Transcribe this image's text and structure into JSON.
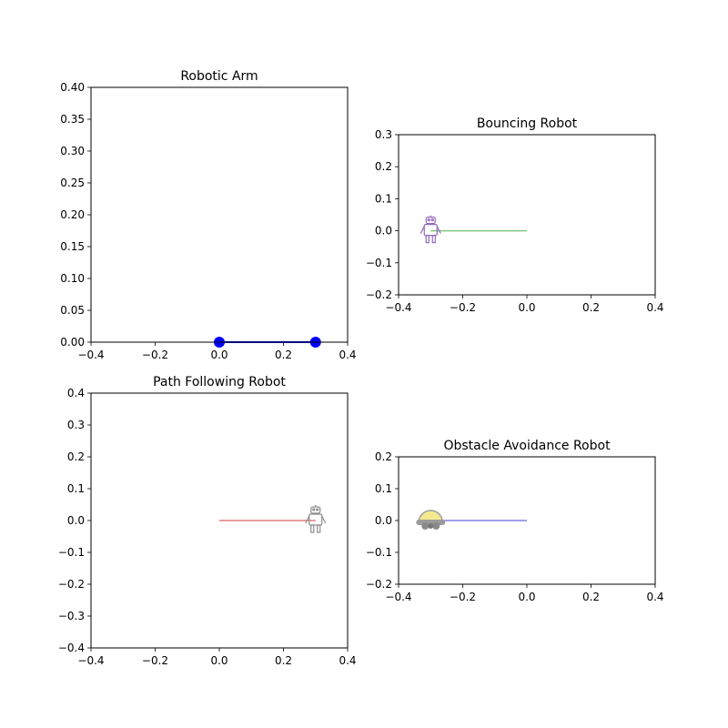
{
  "chart_data": [
    {
      "type": "line",
      "title": "Robotic Arm",
      "xlabel": "",
      "ylabel": "",
      "xlim": [
        -0.4,
        0.4
      ],
      "ylim": [
        0.0,
        0.4
      ],
      "xticks": [
        -0.4,
        -0.2,
        0.0,
        0.2,
        0.4
      ],
      "xtick_labels": [
        "−0.4",
        "−0.2",
        "0.0",
        "0.2",
        "0.4"
      ],
      "yticks": [
        0.0,
        0.05,
        0.1,
        0.15,
        0.2,
        0.25,
        0.3,
        0.35,
        0.4
      ],
      "ytick_labels": [
        "0.00",
        "0.05",
        "0.10",
        "0.15",
        "0.20",
        "0.25",
        "0.30",
        "0.35",
        "0.40"
      ],
      "grid": false,
      "series": [
        {
          "x": [
            0.0,
            0.3
          ],
          "y": [
            0.0,
            0.0
          ],
          "color": "#0000ff",
          "marker": "circle",
          "linewidth": 2
        }
      ]
    },
    {
      "type": "line",
      "title": "Bouncing Robot",
      "xlabel": "",
      "ylabel": "",
      "xlim": [
        -0.4,
        0.4
      ],
      "ylim": [
        -0.2,
        0.3
      ],
      "xticks": [
        -0.4,
        -0.2,
        0.0,
        0.2,
        0.4
      ],
      "xtick_labels": [
        "−0.4",
        "−0.2",
        "0.0",
        "0.2",
        "0.4"
      ],
      "yticks": [
        -0.2,
        -0.1,
        0.0,
        0.1,
        0.2,
        0.3
      ],
      "ytick_labels": [
        "−0.2",
        "−0.1",
        "0.0",
        "0.1",
        "0.2",
        "0.3"
      ],
      "grid": false,
      "series": [
        {
          "x": [
            -0.3,
            0.0
          ],
          "y": [
            0.0,
            0.0
          ],
          "color": "#2ca02c",
          "alpha": 0.6,
          "linewidth": 1.5
        }
      ],
      "icon": {
        "name": "robot-icon",
        "x": -0.3,
        "y": 0.0,
        "color": "#9467bd"
      }
    },
    {
      "type": "line",
      "title": "Path Following Robot",
      "xlabel": "",
      "ylabel": "",
      "xlim": [
        -0.4,
        0.4
      ],
      "ylim": [
        -0.4,
        0.4
      ],
      "xticks": [
        -0.4,
        -0.2,
        0.0,
        0.2,
        0.4
      ],
      "xtick_labels": [
        "−0.4",
        "−0.2",
        "0.0",
        "0.2",
        "0.4"
      ],
      "yticks": [
        -0.4,
        -0.3,
        -0.2,
        -0.1,
        0.0,
        0.1,
        0.2,
        0.3,
        0.4
      ],
      "ytick_labels": [
        "−0.4",
        "−0.3",
        "−0.2",
        "−0.1",
        "0.0",
        "0.1",
        "0.2",
        "0.3",
        "0.4"
      ],
      "grid": false,
      "series": [
        {
          "x": [
            0.0,
            0.3
          ],
          "y": [
            0.0,
            0.0
          ],
          "color": "#d62728",
          "alpha": 0.6,
          "linewidth": 1.5
        }
      ],
      "icon": {
        "name": "robot-icon",
        "x": 0.3,
        "y": 0.0,
        "color": "#8c8c8c"
      }
    },
    {
      "type": "line",
      "title": "Obstacle Avoidance Robot",
      "xlabel": "",
      "ylabel": "",
      "xlim": [
        -0.4,
        0.4
      ],
      "ylim": [
        -0.2,
        0.2
      ],
      "xticks": [
        -0.4,
        -0.2,
        0.0,
        0.2,
        0.4
      ],
      "xtick_labels": [
        "−0.4",
        "−0.2",
        "0.0",
        "0.2",
        "0.4"
      ],
      "yticks": [
        -0.2,
        -0.1,
        0.0,
        0.1,
        0.2
      ],
      "ytick_labels": [
        "−0.2",
        "−0.1",
        "0.0",
        "0.1",
        "0.2"
      ],
      "grid": false,
      "series": [
        {
          "x": [
            -0.3,
            0.0
          ],
          "y": [
            0.0,
            0.0
          ],
          "color": "#0000cc",
          "alpha": 0.5,
          "linewidth": 1.5
        }
      ],
      "icon": {
        "name": "rover-icon",
        "x": -0.3,
        "y": 0.0,
        "color": "#f5e88a"
      }
    }
  ]
}
